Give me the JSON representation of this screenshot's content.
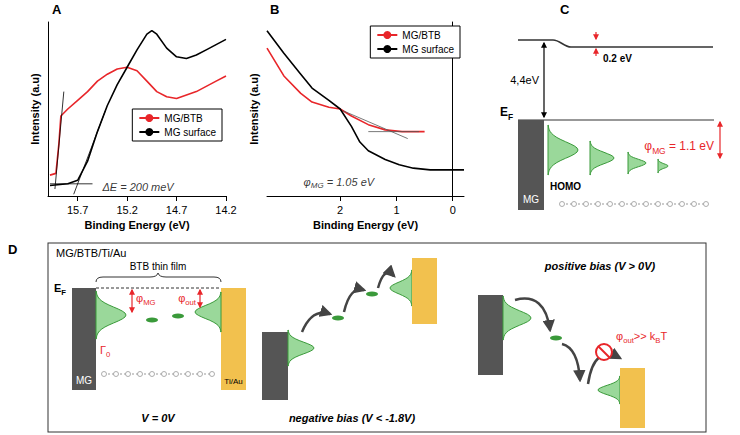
{
  "chart_data": [
    {
      "panel": "A",
      "type": "line",
      "x_label": "Binding Energy (eV)",
      "y_label": "Intensity (a.u)",
      "xlim": [
        16.0,
        14.2
      ],
      "xticks": [
        15.7,
        15.2,
        14.7,
        14.2
      ],
      "ylim": [
        0,
        1
      ],
      "tick_labels": "x",
      "legend": "right",
      "series": [
        {
          "name": "MG/BTB",
          "color": "#e8262a",
          "x": [
            15.98,
            15.92,
            15.89,
            15.87,
            15.8,
            15.7,
            15.6,
            15.5,
            15.4,
            15.3,
            15.2,
            15.1,
            15.0,
            14.9,
            14.8,
            14.7,
            14.6,
            14.5,
            14.4,
            14.3,
            14.2
          ],
          "values": [
            0.12,
            0.13,
            0.3,
            0.46,
            0.5,
            0.55,
            0.6,
            0.66,
            0.7,
            0.73,
            0.74,
            0.72,
            0.66,
            0.6,
            0.57,
            0.56,
            0.58,
            0.6,
            0.63,
            0.66,
            0.69
          ]
        },
        {
          "name": "MG surface",
          "color": "#000000",
          "x": [
            15.98,
            15.8,
            15.7,
            15.6,
            15.5,
            15.4,
            15.3,
            15.2,
            15.1,
            15.0,
            14.95,
            14.9,
            14.8,
            14.7,
            14.6,
            14.5,
            14.4,
            14.3,
            14.2
          ],
          "values": [
            0.06,
            0.07,
            0.09,
            0.2,
            0.37,
            0.52,
            0.64,
            0.74,
            0.84,
            0.93,
            0.95,
            0.93,
            0.85,
            0.8,
            0.79,
            0.81,
            0.84,
            0.87,
            0.9
          ]
        }
      ],
      "guides": [
        {
          "color": "#000000",
          "x": [
            15.98,
            15.55
          ],
          "values": [
            0.07,
            0.07
          ]
        },
        {
          "color": "#000000",
          "x": [
            15.74,
            15.42
          ],
          "values": [
            0.01,
            0.49
          ]
        },
        {
          "color": "#000000",
          "x": [
            15.93,
            15.84
          ],
          "values": [
            0.04,
            0.6
          ]
        }
      ],
      "annotations": [
        {
          "parts": [
            {
              "t": "ΔE = 200 meV"
            }
          ],
          "x": 15.45,
          "y": 0.05
        }
      ]
    },
    {
      "panel": "B",
      "type": "line",
      "x_label": "Binding Energy (eV)",
      "y_label": "Intensity (a.u)",
      "xlim": [
        3.3,
        -0.2
      ],
      "xticks": [
        2,
        1,
        0
      ],
      "ylim": [
        0,
        1
      ],
      "tick_labels": "x",
      "legend": "top-right",
      "series": [
        {
          "name": "MG/BTB",
          "color": "#e8262a",
          "x": [
            3.3,
            3.0,
            2.7,
            2.5,
            2.2,
            2.0,
            1.8,
            1.5,
            1.2,
            0.9,
            0.7,
            0.5
          ],
          "values": [
            0.85,
            0.69,
            0.59,
            0.54,
            0.51,
            0.5,
            0.46,
            0.41,
            0.38,
            0.37,
            0.37,
            0.37
          ]
        },
        {
          "name": "MG surface",
          "color": "#000000",
          "x": [
            3.3,
            3.0,
            2.7,
            2.5,
            2.2,
            2.0,
            1.8,
            1.65,
            1.5,
            1.2,
            0.95,
            0.7,
            0.4,
            0.1,
            -0.2
          ],
          "values": [
            0.95,
            0.82,
            0.7,
            0.62,
            0.55,
            0.5,
            0.4,
            0.31,
            0.26,
            0.21,
            0.18,
            0.16,
            0.15,
            0.15,
            0.15
          ]
        }
      ],
      "guides": [
        {
          "color": "#555555",
          "x": [
            1.5,
            0.6
          ],
          "values": [
            0.37,
            0.37
          ]
        },
        {
          "color": "#555555",
          "x": [
            1.95,
            0.8
          ],
          "values": [
            0.49,
            0.33
          ]
        }
      ],
      "annotations": [
        {
          "parts": [
            {
              "t": "φ"
            },
            {
              "t": "MG",
              "sub": true
            },
            {
              "t": " = 1.05 eV"
            }
          ],
          "x": 2.65,
          "y": 0.08
        }
      ]
    }
  ],
  "diagram_c": {
    "panel": "C",
    "vacuum_step": "0.2 eV",
    "work_function": "4,4eV",
    "fermi_level": [
      {
        "t": "E"
      },
      {
        "t": "F",
        "sub": true
      }
    ],
    "electrode": "MG",
    "orbital": "HOMO",
    "barrier": [
      {
        "t": "φ"
      },
      {
        "t": "MG",
        "sub": true
      },
      {
        "t": " = 1.1 eV"
      }
    ]
  },
  "diagram_d": {
    "panel": "D",
    "title": "MG/BTB/Ti/Au",
    "film": "BTB thin film",
    "fermi_level": [
      {
        "t": "E"
      },
      {
        "t": "F",
        "sub": true
      }
    ],
    "left_electrode": "MG",
    "right_electrode": "Ti/Au",
    "coupling": [
      {
        "t": "Γ"
      },
      {
        "t": "0",
        "sub": true
      }
    ],
    "barrier_in": [
      {
        "t": "φ"
      },
      {
        "t": "MG",
        "sub": true
      }
    ],
    "barrier_out": [
      {
        "t": "φ"
      },
      {
        "t": "out",
        "sub": true
      }
    ],
    "states": [
      "V = 0V",
      "negative bias (V < -1.8V)",
      "positive bias (V > 0V)"
    ],
    "blocked": [
      {
        "t": "φ"
      },
      {
        "t": "out",
        "sub": true
      },
      {
        "t": ">> k"
      },
      {
        "t": "B",
        "sub": true
      },
      {
        "t": "T"
      }
    ]
  }
}
